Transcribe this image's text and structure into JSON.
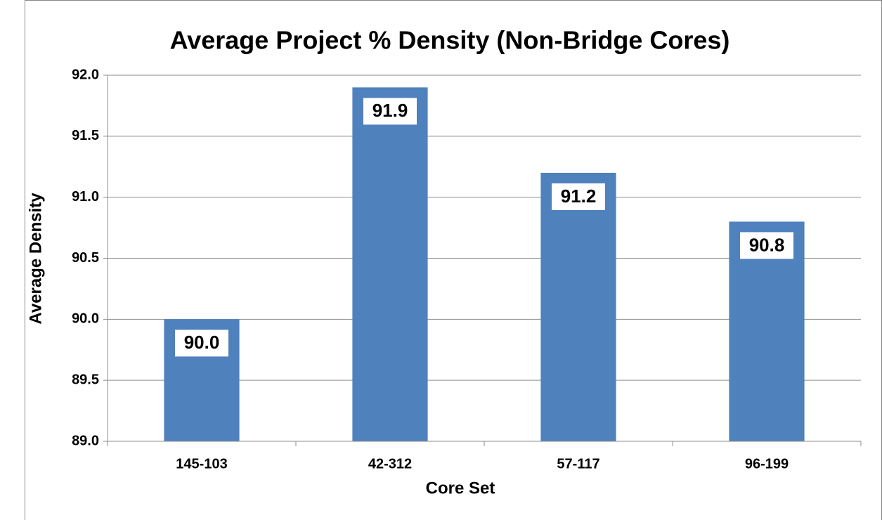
{
  "chart_data": {
    "type": "bar",
    "title": "Average Project % Density (Non-Bridge Cores)",
    "x_label": "Core Set",
    "y_label": "Average Density",
    "categories": [
      "145-103",
      "42-312",
      "57-117",
      "96-199"
    ],
    "values": [
      90.0,
      91.9,
      91.2,
      90.8
    ],
    "value_labels": [
      "90.0",
      "91.9",
      "91.2",
      "90.8"
    ],
    "color": "#4f81bd",
    "ylim": [
      89,
      92
    ],
    "yticks": [
      {
        "value": 89,
        "label": "89.0"
      },
      89.5,
      {
        "value": 90,
        "label": "90.0"
      },
      90.5,
      {
        "value": 91,
        "label": "91.0"
      },
      91.5,
      {
        "value": 92,
        "label": "92.0"
      }
    ],
    "grid": true
  }
}
